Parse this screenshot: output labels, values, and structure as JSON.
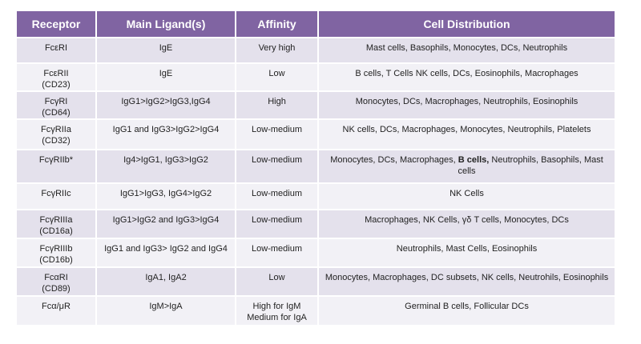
{
  "table": {
    "headers": [
      "Receptor",
      "Main Ligand(s)",
      "Affinity",
      "Cell Distribution"
    ],
    "rows": [
      {
        "receptor": [
          "FcεRI"
        ],
        "ligand": "IgE",
        "affinity": [
          "Very high"
        ],
        "distribution": {
          "before": "Mast cells, Basophils, Monocytes, DCs, Neutrophils",
          "bold": "",
          "after": ""
        }
      },
      {
        "receptor": [
          "FcεRII",
          "(CD23)"
        ],
        "ligand": "IgE",
        "affinity": [
          "Low"
        ],
        "distribution": {
          "before": "B cells, T Cells NK cells, DCs, Eosinophils, Macrophages",
          "bold": "",
          "after": ""
        }
      },
      {
        "receptor": [
          "FcγRI",
          "(CD64)"
        ],
        "ligand": "IgG1>IgG2>IgG3,IgG4",
        "affinity": [
          "High"
        ],
        "distribution": {
          "before": "Monocytes, DCs, Macrophages, Neutrophils, Eosinophils",
          "bold": "",
          "after": ""
        }
      },
      {
        "receptor": [
          "FcγRIIa",
          "(CD32)"
        ],
        "ligand": "IgG1 and IgG3>IgG2>IgG4",
        "affinity": [
          "Low-medium"
        ],
        "distribution": {
          "before": "NK cells, DCs, Macrophages, Monocytes, Neutrophils, Platelets",
          "bold": "",
          "after": ""
        }
      },
      {
        "receptor": [
          "FcγRIIb*"
        ],
        "ligand": "Ig4>IgG1,  IgG3>IgG2",
        "affinity": [
          "Low-medium"
        ],
        "distribution": {
          "before": "Monocytes, DCs, Macrophages, ",
          "bold": "B cells,",
          "after": " Neutrophils, Basophils, Mast cells"
        }
      },
      {
        "receptor": [
          "FcγRIIc"
        ],
        "ligand": "IgG1>IgG3,  IgG4>IgG2",
        "affinity": [
          "Low-medium"
        ],
        "distribution": {
          "before": "NK Cells",
          "bold": "",
          "after": ""
        }
      },
      {
        "receptor": [
          "FcγRIIIa",
          "(CD16a)"
        ],
        "ligand": "IgG1>IgG2 and IgG3>IgG4",
        "affinity": [
          "Low-medium"
        ],
        "distribution": {
          "before": "Macrophages, NK Cells, γδ T cells, Monocytes, DCs",
          "bold": "",
          "after": ""
        }
      },
      {
        "receptor": [
          "FcγRIIIb",
          "(CD16b)"
        ],
        "ligand": "IgG1 and IgG3> IgG2 and IgG4",
        "affinity": [
          "Low-medium"
        ],
        "distribution": {
          "before": "Neutrophils, Mast Cells, Eosinophils",
          "bold": "",
          "after": ""
        }
      },
      {
        "receptor": [
          "FcαRI",
          "(CD89)"
        ],
        "ligand": "IgA1, IgA2",
        "affinity": [
          "Low"
        ],
        "distribution": {
          "before": "Monocytes, Macrophages, DC subsets, NK cells, Neutrohils, Eosinophils",
          "bold": "",
          "after": ""
        }
      },
      {
        "receptor": [
          "Fcα/μR"
        ],
        "ligand": "IgM>IgA",
        "affinity": [
          "High for IgM",
          "Medium for IgA"
        ],
        "distribution": {
          "before": "Germinal B cells, Follicular DCs",
          "bold": "",
          "after": ""
        }
      }
    ]
  },
  "colors": {
    "header_bg": "#8064a2",
    "header_text": "#ffffff",
    "row_odd": "#e4e1ec",
    "row_even": "#f2f1f6",
    "text": "#222222"
  }
}
